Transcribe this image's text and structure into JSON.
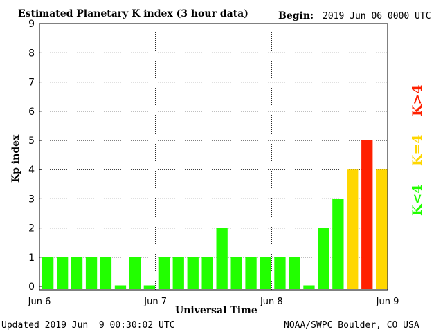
{
  "header": {
    "title": "Estimated Planetary K index (3 hour data)",
    "begin_label": "Begin:",
    "begin_value": "2019 Jun 06 0000 UTC"
  },
  "footer": {
    "updated": "Updated 2019 Jun  9 00:30:02 UTC",
    "source": "NOAA/SWPC Boulder, CO USA"
  },
  "legend": {
    "low": "K<4",
    "mid": "K=4",
    "high": "K>4"
  },
  "colors": {
    "low": "#22ff00",
    "mid": "#ffd700",
    "high": "#ff2000"
  },
  "chart_data": {
    "type": "bar",
    "title": "Estimated Planetary K index (3 hour data)",
    "xlabel": "Universal Time",
    "ylabel": "Kp index",
    "ylim": [
      0,
      9
    ],
    "yticks": [
      "0",
      "1",
      "2",
      "3",
      "4",
      "5",
      "6",
      "7",
      "8",
      "9"
    ],
    "xticks": [
      "Jun 6",
      "Jun 7",
      "Jun 8",
      "Jun 9"
    ],
    "grid": true,
    "legend_placement": "right",
    "values": [
      1,
      1,
      1,
      1,
      1,
      0,
      1,
      0,
      1,
      1,
      1,
      1,
      2,
      1,
      1,
      1,
      1,
      1,
      0,
      2,
      3,
      4,
      5,
      4
    ]
  }
}
